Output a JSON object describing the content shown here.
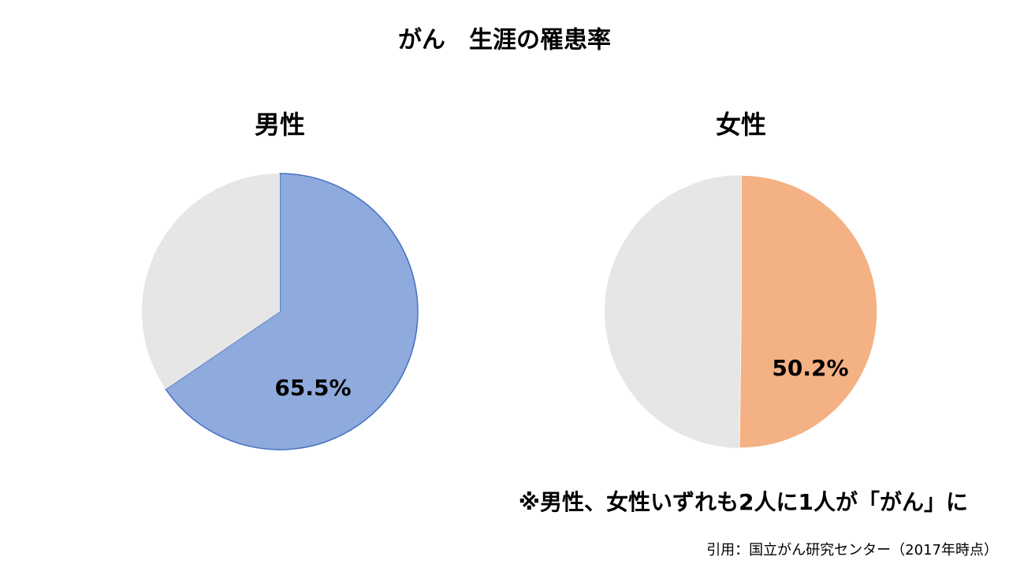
{
  "title": "がん　生涯の罹患率",
  "chart_data": [
    {
      "type": "pie",
      "title": "男性",
      "values": [
        65.5,
        34.5
      ],
      "value_labels": [
        "65.5%",
        null
      ],
      "colors": [
        "#8faadc",
        "#e7e6e6"
      ],
      "edge_color": "#4472c4"
    },
    {
      "type": "pie",
      "title": "女性",
      "values": [
        50.2,
        49.8
      ],
      "value_labels": [
        "50.2%",
        null
      ],
      "colors": [
        "#f4b183",
        "#e7e6e6"
      ],
      "edge_color": "#ffffff"
    }
  ],
  "note": "※男性、女性いずれも2人に1人が「がん」に",
  "source": "引用：国立がん研究センター（2017年時点）"
}
